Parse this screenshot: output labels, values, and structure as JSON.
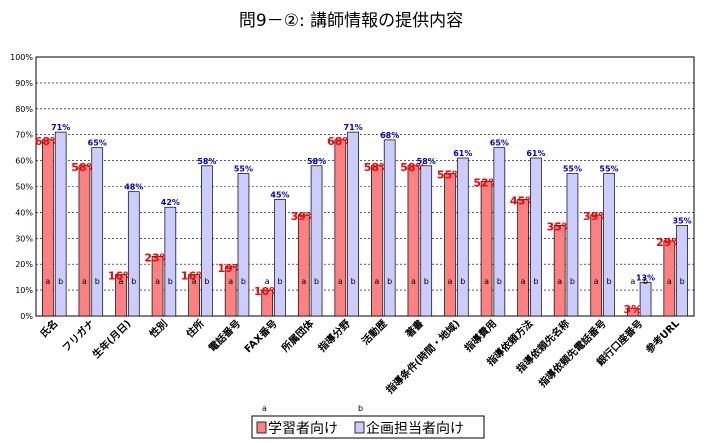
{
  "chart_data": {
    "type": "bar",
    "title": "問9－②: 講師情報の提供内容",
    "categories": [
      "氏名",
      "フリガナ",
      "生年(月日)",
      "性別",
      "住所",
      "電話番号",
      "FAX番号",
      "所属団体",
      "指導分野",
      "活動歴",
      "著書",
      "指導条件(時間・地域)",
      "指導費用",
      "指導依頼方法",
      "指導依頼先名称",
      "指導依頼先電話番号",
      "銀行口座番号",
      "参考URL"
    ],
    "series": [
      {
        "name": "学習者向け",
        "bar_tag": "a",
        "color": "#ff8080",
        "values": [
          68,
          58,
          16,
          23,
          16,
          19,
          10,
          39,
          68,
          58,
          58,
          55,
          52,
          45,
          35,
          39,
          3,
          29
        ],
        "labels": [
          "68%",
          "58%",
          "16%",
          "23%",
          "16%",
          "19%",
          "10%",
          "39%",
          "68%",
          "58%",
          "58%",
          "55%",
          "52%",
          "45%",
          "35%",
          "39%",
          "3%",
          "29%"
        ]
      },
      {
        "name": "企画担当者向け",
        "bar_tag": "b",
        "color": "#ccccff",
        "values": [
          71,
          65,
          48,
          42,
          58,
          55,
          45,
          58,
          71,
          68,
          58,
          61,
          65,
          61,
          55,
          55,
          13,
          35
        ],
        "labels": [
          "71%",
          "65%",
          "48%",
          "42%",
          "58%",
          "55%",
          "45%",
          "58%",
          "71%",
          "68%",
          "58%",
          "61%",
          "65%",
          "61%",
          "55%",
          "55%",
          "13%",
          "35%"
        ]
      }
    ],
    "yticks": [
      "0%",
      "10%",
      "20%",
      "30%",
      "40%",
      "50%",
      "60%",
      "70%",
      "80%",
      "90%",
      "100%"
    ],
    "ylim": [
      0,
      100
    ],
    "grid": true,
    "legend": "bottom-center",
    "legend_tags": [
      "a",
      "b"
    ]
  }
}
